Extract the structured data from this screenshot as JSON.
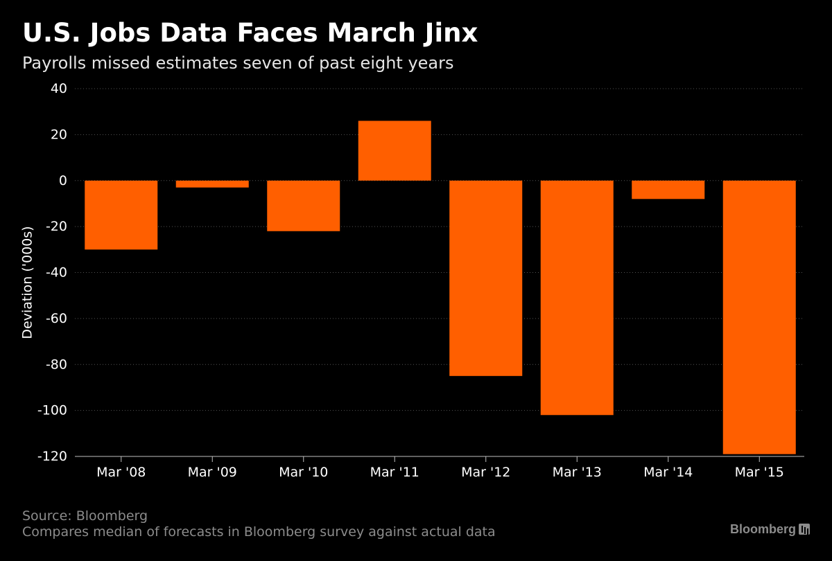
{
  "header": {
    "title": "U.S. Jobs Data Faces March Jinx",
    "subtitle": "Payrolls missed estimates seven of past eight years"
  },
  "footer": {
    "source": "Source: Bloomberg",
    "note": "Compares median of forecasts in Bloomberg survey against actual data",
    "brand": "Bloomberg"
  },
  "colors": {
    "background": "#000000",
    "bar": "#ff5f00",
    "gridline": "#555555",
    "text": "#ffffff",
    "muted_text": "#8c8c8c"
  },
  "chart_data": {
    "type": "bar",
    "title": "U.S. Jobs Data Faces March Jinx",
    "subtitle": "Payrolls missed estimates seven of past eight years",
    "xlabel": "",
    "ylabel": "Deviation ('000s)",
    "categories": [
      "Mar '08",
      "Mar '09",
      "Mar '10",
      "Mar '11",
      "Mar '12",
      "Mar '13",
      "Mar '14",
      "Mar '15"
    ],
    "values": [
      -30,
      -3,
      -22,
      26,
      -85,
      -102,
      -8,
      -119
    ],
    "ylim": [
      -120,
      40
    ],
    "yticks": [
      "40",
      "20",
      "0",
      "-20",
      "-40",
      "-60",
      "-80",
      "-100",
      "-120"
    ],
    "ytick_values": [
      40,
      20,
      0,
      -20,
      -40,
      -60,
      -80,
      -100,
      -120
    ],
    "grid": true,
    "legend": "none"
  }
}
